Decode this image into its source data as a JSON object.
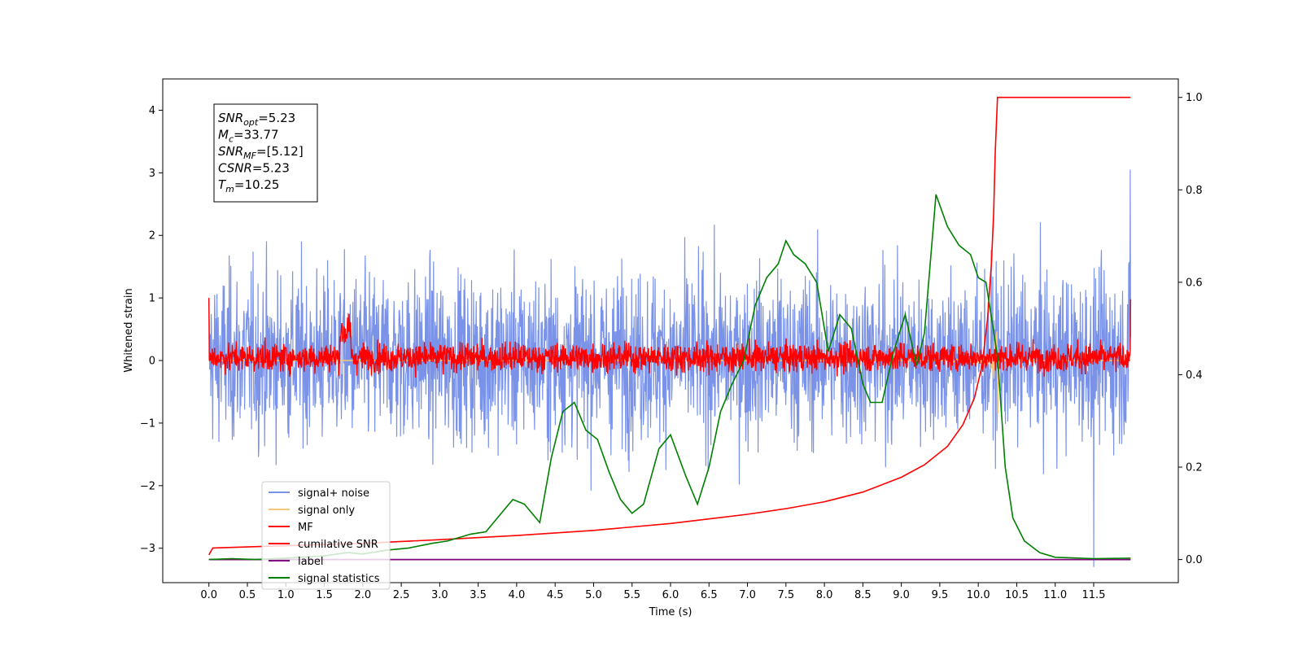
{
  "chart_data": {
    "type": "line",
    "xlabel": "Time (s)",
    "ylabel": "Whitened strain",
    "xlim": [
      -0.6,
      12.6
    ],
    "ylim": [
      -3.55,
      4.5
    ],
    "y2lim": [
      -0.05,
      1.04
    ],
    "x_ticks": [
      "0.0",
      "0.5",
      "1.0",
      "1.5",
      "2.0",
      "2.5",
      "3.0",
      "3.5",
      "4.0",
      "4.5",
      "5.0",
      "5.5",
      "6.0",
      "6.5",
      "7.0",
      "7.5",
      "8.0",
      "8.5",
      "9.0",
      "9.5",
      "10.0",
      "10.5",
      "11.0",
      "11.5"
    ],
    "y_ticks": [
      "−3",
      "−2",
      "−1",
      "0",
      "1",
      "2",
      "3",
      "4"
    ],
    "y2_ticks": [
      "0.0",
      "0.2",
      "0.4",
      "0.6",
      "0.8",
      "1.0"
    ],
    "annotation": [
      {
        "base": "SNR",
        "sub": "opt",
        "rest": "=5.23"
      },
      {
        "base": "M",
        "sub": "c",
        "rest": "=33.77"
      },
      {
        "base": "SNR",
        "sub": "MF",
        "rest": "=[5.12]"
      },
      {
        "base": "CSNR",
        "sub": "",
        "rest": "=5.23"
      },
      {
        "base": "T",
        "sub": "m",
        "rest": "=10.25"
      }
    ],
    "legend_position": "lower-left",
    "series": [
      {
        "name": "signal+ noise",
        "color": "#7a93e8",
        "axis": "left",
        "style": "noise",
        "envelope_range": [
          -2.6,
          2.7
        ],
        "spike_at": 11.98,
        "spike_value": 3.05,
        "dip_at": 11.5,
        "dip_value": -3.3
      },
      {
        "name": "signal only",
        "color": "#f5c77a",
        "axis": "left",
        "style": "chirp",
        "peak_time": 10.25,
        "peak_range": [
          -0.85,
          0.55
        ]
      },
      {
        "name": "MF",
        "color": "#ff0000",
        "axis": "left",
        "style": "noise",
        "envelope_range": [
          -0.35,
          0.9
        ],
        "edge_values": [
          1.0,
          0.98
        ]
      },
      {
        "name": "cumilative SNR",
        "color": "#ff0000",
        "axis": "right",
        "x": [
          0.0,
          0.05,
          1.0,
          2.0,
          3.0,
          4.0,
          5.0,
          6.0,
          7.0,
          7.5,
          8.0,
          8.5,
          9.0,
          9.3,
          9.6,
          9.8,
          9.95,
          10.05,
          10.12,
          10.17,
          10.2,
          10.22,
          10.25,
          11.98
        ],
        "y": [
          0.01,
          0.025,
          0.03,
          0.035,
          0.043,
          0.052,
          0.063,
          0.078,
          0.098,
          0.11,
          0.125,
          0.146,
          0.178,
          0.205,
          0.245,
          0.292,
          0.35,
          0.42,
          0.52,
          0.64,
          0.75,
          0.88,
          1.0,
          1.0
        ]
      },
      {
        "name": "label",
        "color": "#800080",
        "axis": "right",
        "x": [
          0.0,
          11.98
        ],
        "y": [
          0.0,
          0.0
        ]
      },
      {
        "name": "signal statistics",
        "color": "#008000",
        "axis": "right",
        "x": [
          0.0,
          0.3,
          0.6,
          1.0,
          1.5,
          1.8,
          2.0,
          2.3,
          2.6,
          2.9,
          3.1,
          3.4,
          3.6,
          3.8,
          3.95,
          4.1,
          4.3,
          4.45,
          4.6,
          4.75,
          4.9,
          5.05,
          5.2,
          5.35,
          5.5,
          5.65,
          5.85,
          6.0,
          6.2,
          6.35,
          6.5,
          6.65,
          6.8,
          6.95,
          7.1,
          7.25,
          7.4,
          7.5,
          7.6,
          7.75,
          7.9,
          8.05,
          8.2,
          8.35,
          8.5,
          8.6,
          8.75,
          8.9,
          9.05,
          9.2,
          9.3,
          9.45,
          9.6,
          9.75,
          9.9,
          10.0,
          10.1,
          10.25,
          10.35,
          10.45,
          10.6,
          10.8,
          11.0,
          11.5,
          11.98
        ],
        "y": [
          0.0,
          0.002,
          0.0,
          0.003,
          0.008,
          0.015,
          0.012,
          0.02,
          0.025,
          0.035,
          0.04,
          0.055,
          0.06,
          0.1,
          0.13,
          0.12,
          0.08,
          0.22,
          0.32,
          0.34,
          0.28,
          0.26,
          0.19,
          0.13,
          0.1,
          0.12,
          0.24,
          0.27,
          0.18,
          0.12,
          0.2,
          0.32,
          0.38,
          0.43,
          0.55,
          0.61,
          0.64,
          0.69,
          0.66,
          0.64,
          0.6,
          0.45,
          0.53,
          0.5,
          0.38,
          0.34,
          0.34,
          0.45,
          0.53,
          0.42,
          0.49,
          0.79,
          0.72,
          0.68,
          0.66,
          0.61,
          0.6,
          0.44,
          0.2,
          0.09,
          0.04,
          0.015,
          0.005,
          0.002,
          0.003
        ]
      }
    ]
  }
}
